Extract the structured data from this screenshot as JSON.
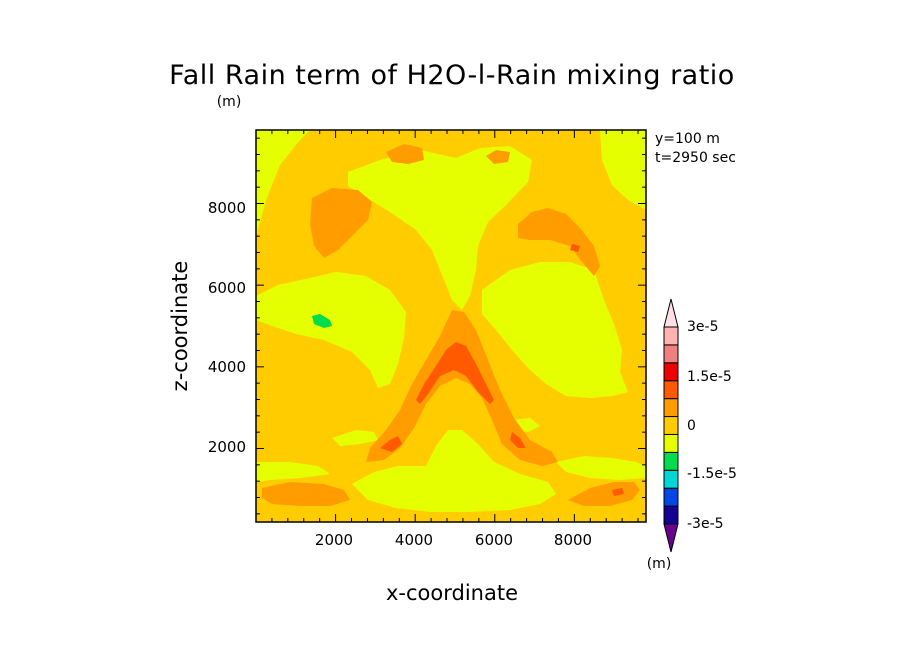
{
  "chart_data": {
    "type": "heatmap",
    "title": "Fall Rain term of H2O-l-Rain mixing ratio",
    "title_units": "(m)",
    "xlabel": "x-coordinate",
    "ylabel": "z-coordinate",
    "annotations": [
      "y=100 m",
      "t=2950 sec"
    ],
    "xlim": [
      0,
      9800
    ],
    "ylim": [
      200,
      9800
    ],
    "xticks": [
      "2000",
      "4000",
      "6000",
      "8000"
    ],
    "yticks": [
      "2000",
      "4000",
      "6000",
      "8000"
    ],
    "colorbar": {
      "units": "(m)",
      "labels": [
        "3e-5",
        "1.5e-5",
        "0",
        "-1.5e-5",
        "-3e-5"
      ],
      "colors": [
        "#6a008f",
        "#140092",
        "#0046e6",
        "#00d6d6",
        "#00dc4b",
        "#e6ff00",
        "#ffcc00",
        "#ff9c00",
        "#ff5a00",
        "#ec0000",
        "#f08080",
        "#ffb2b2",
        "#ffe0e6"
      ]
    },
    "regions": [
      {
        "level": "0 to 7.5e-6",
        "color": "#ffcc00",
        "role": "background"
      },
      {
        "level": "-7.5e-6 to 0",
        "color": "#e6ff00",
        "role": "upper and side light areas"
      },
      {
        "level": "7.5e-6 to 1.5e-5",
        "color": "#ff9c00",
        "role": "inverted-V band and upper patches"
      },
      {
        "level": "1.5e-5 to 2.25e-5",
        "color": "#ff5a00",
        "role": "core near x=5000, z=4000"
      },
      {
        "level": "-1.5e-5 to -7.5e-6",
        "color": "#00dc4b",
        "role": "small patch near x=1700, z=5100"
      }
    ]
  }
}
